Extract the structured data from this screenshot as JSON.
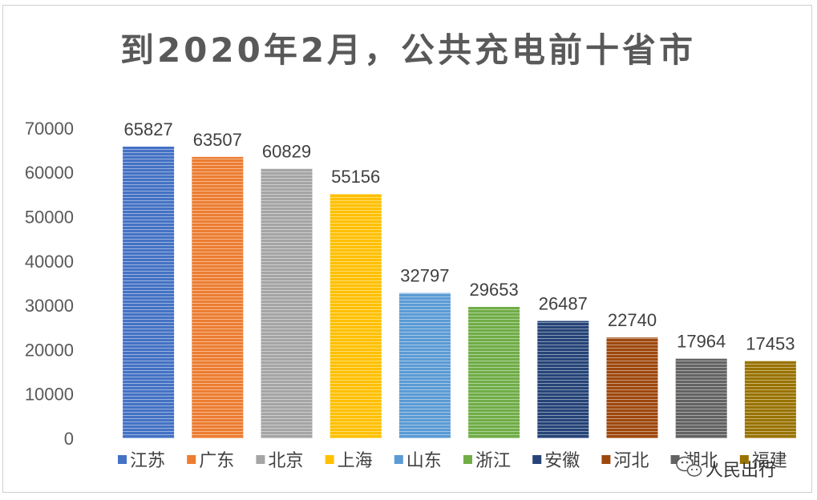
{
  "chart_data": {
    "type": "bar",
    "title": "到2020年2月，公共充电前十省市",
    "categories": [
      "江苏",
      "广东",
      "北京",
      "上海",
      "山东",
      "浙江",
      "安徽",
      "河北",
      "湖北",
      "福建"
    ],
    "values": [
      65827,
      63507,
      60829,
      55156,
      32797,
      29653,
      26487,
      22740,
      17964,
      17453
    ],
    "colors": [
      "#4472C4",
      "#ED7D31",
      "#A5A5A5",
      "#FFC000",
      "#5B9BD5",
      "#70AD47",
      "#264478",
      "#9E480E",
      "#636363",
      "#997300"
    ],
    "ylim": [
      0,
      70000
    ],
    "yticks": [
      "0",
      "10000",
      "20000",
      "30000",
      "40000",
      "50000",
      "60000",
      "70000"
    ],
    "grid": false,
    "legend_position": "bottom",
    "xlabel": "",
    "ylabel": ""
  },
  "watermark": {
    "text": "人民出行",
    "icon": "wechat-icon"
  }
}
